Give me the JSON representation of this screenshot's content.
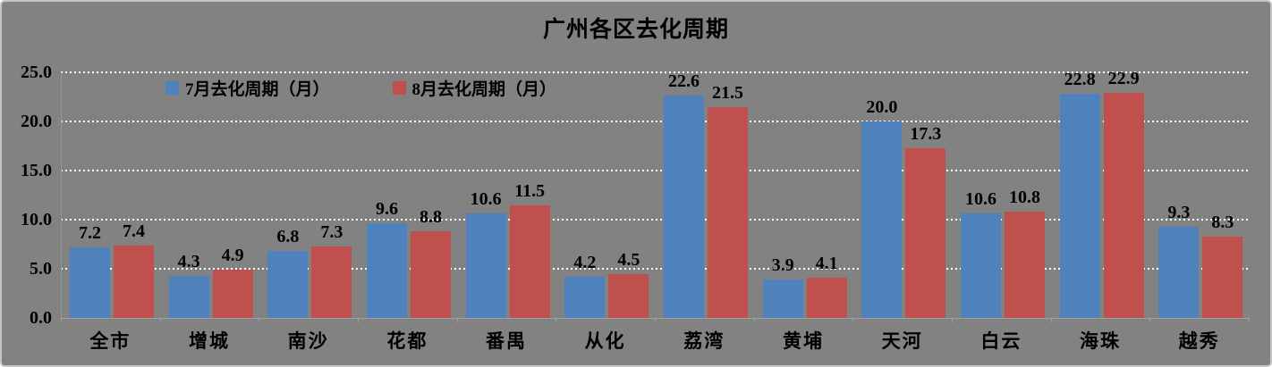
{
  "window": {
    "background_color": "#828282",
    "frame_border_color": "#c6c6c6",
    "gridline_color": "#ffffff",
    "axis_color": "#a2a2a2",
    "text_color": "#000000"
  },
  "chart_data": {
    "type": "bar",
    "title": "广州各区去化周期",
    "categories": [
      "全市",
      "增城",
      "南沙",
      "花都",
      "番禺",
      "从化",
      "荔湾",
      "黄埔",
      "天河",
      "白云",
      "海珠",
      "越秀"
    ],
    "series": [
      {
        "name": "7月去化周期（月）",
        "color": "#4F81BD",
        "values": [
          7.2,
          4.3,
          6.8,
          9.6,
          10.6,
          4.2,
          22.6,
          3.9,
          20.0,
          10.6,
          22.8,
          9.3
        ]
      },
      {
        "name": "8月去化周期（月）",
        "color": "#C0504D",
        "values": [
          7.4,
          4.9,
          7.3,
          8.8,
          11.5,
          4.5,
          21.5,
          4.1,
          17.3,
          10.8,
          22.9,
          8.3
        ]
      }
    ],
    "xlabel": "",
    "ylabel": "",
    "ylim": [
      0,
      25
    ],
    "ytick_step": 5,
    "ytick_labels": [
      "0.0",
      "5.0",
      "10.0",
      "15.0",
      "20.0",
      "25.0"
    ],
    "grid": true,
    "data_labels": true,
    "data_label_decimals": 1,
    "legend_position": "top-inside-left"
  }
}
